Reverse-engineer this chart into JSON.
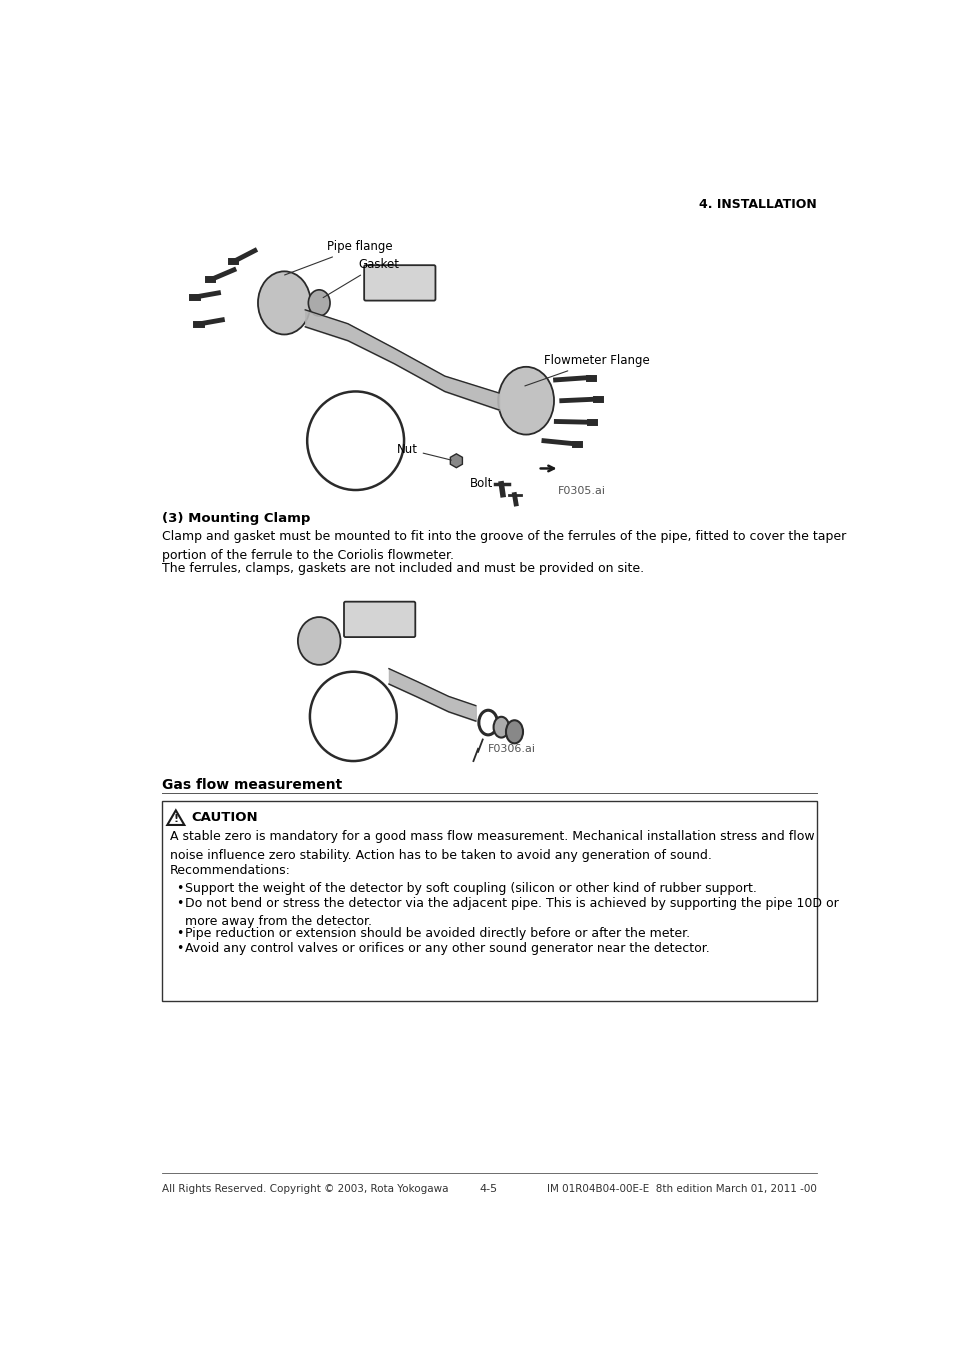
{
  "page_header": "4. INSTALLATION",
  "section1_title": "(3) Mounting Clamp",
  "section1_body1": "Clamp and gasket must be mounted to fit into the groove of the ferrules of the pipe, fitted to cover the taper\nportion of the ferrule to the Coriolis flowmeter.",
  "section1_body2": "The ferrules, clamps, gaskets are not included and must be provided on site.",
  "fig1_pipe_flange": "Pipe flange",
  "fig1_gasket": "Gasket",
  "fig1_flowmeter_flange": "Flowmeter Flange",
  "fig1_nut": "Nut",
  "fig1_bolt": "Bolt",
  "fig1_id": "F0305.ai",
  "fig2_id": "F0306.ai",
  "section2_title": "Gas flow measurement",
  "caution_title": "CAUTION",
  "caution_body": "A stable zero is mandatory for a good mass flow measurement. Mechanical installation stress and flow\nnoise influence zero stability. Action has to be taken to avoid any generation of sound.",
  "recommendations_title": "Recommendations:",
  "rec1": "Support the weight of the detector by soft coupling (silicon or other kind of rubber support.",
  "rec2": "Do not bend or stress the detector via the adjacent pipe. This is achieved by supporting the pipe 10D or\nmore away from the detector.",
  "rec3": "Pipe reduction or extension should be avoided directly before or after the meter.",
  "rec4": "Avoid any control valves or orifices or any other sound generator near the detector.",
  "footer_left": "All Rights Reserved. Copyright © 2003, Rota Yokogawa",
  "footer_center": "4-5",
  "footer_right": "IM 01R04B04-00E-E  8th edition March 01, 2011 -00",
  "bg_color": "#ffffff",
  "text_color": "#000000"
}
